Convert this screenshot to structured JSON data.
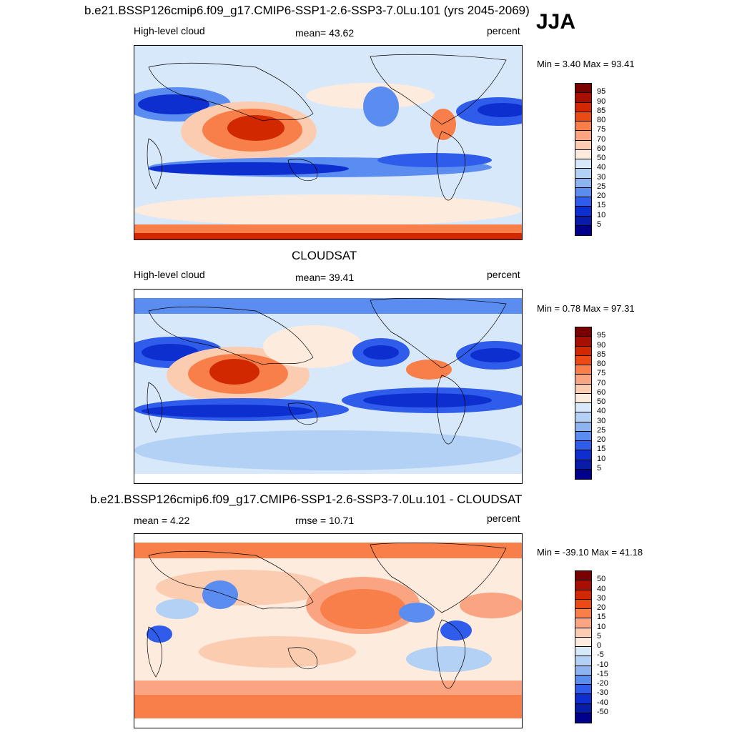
{
  "season": "JJA",
  "panels": [
    {
      "title": "b.e21.BSSP126cmip6.f09_g17.CMIP6-SSP1-2.6-SSP3-7.0Lu.101 (yrs 2045-2069)",
      "left_label": "High-level cloud",
      "center_label": "mean=  43.62",
      "right_label": "percent",
      "minmax": "Min =   3.40 Max =  93.41",
      "colorbar_labels": [
        "95",
        "90",
        "85",
        "80",
        "75",
        "70",
        "60",
        "50",
        "40",
        "30",
        "25",
        "20",
        "15",
        "10",
        "5"
      ]
    },
    {
      "title": "CLOUDSAT",
      "left_label": "High-level cloud",
      "center_label": "mean=  39.41",
      "right_label": "percent",
      "minmax": "Min =   0.78 Max =  97.31",
      "colorbar_labels": [
        "95",
        "90",
        "85",
        "80",
        "75",
        "70",
        "60",
        "50",
        "40",
        "30",
        "25",
        "20",
        "15",
        "10",
        "5"
      ]
    },
    {
      "title": "b.e21.BSSP126cmip6.f09_g17.CMIP6-SSP1-2.6-SSP3-7.0Lu.101 - CLOUDSAT",
      "left_label": "mean =   4.22",
      "center_label": "rmse =  10.71",
      "right_label": "percent",
      "minmax": "Min = -39.10 Max =  41.18",
      "colorbar_labels": [
        "50",
        "40",
        "30",
        "20",
        "15",
        "10",
        "5",
        "0",
        "-5",
        "-10",
        "-15",
        "-20",
        "-30",
        "-40",
        "-50"
      ]
    }
  ],
  "colors": {
    "abs_scale": [
      "#7a0000",
      "#a71000",
      "#d12800",
      "#ec4a14",
      "#f87f4a",
      "#fba482",
      "#fcccb0",
      "#fdebde",
      "#d8e8fb",
      "#b3d0f5",
      "#8db4ef",
      "#5b8cf0",
      "#2f5cea",
      "#0d2fd0",
      "#071da8",
      "#00008b"
    ],
    "diff_scale": [
      "#7a0000",
      "#a71000",
      "#d12800",
      "#ec4a14",
      "#f87f4a",
      "#fba482",
      "#fcccb0",
      "#fdebde",
      "#d8e8fb",
      "#b3d0f5",
      "#8db4ef",
      "#5b8cf0",
      "#2f5cea",
      "#0d2fd0",
      "#071da8",
      "#00008b"
    ]
  }
}
